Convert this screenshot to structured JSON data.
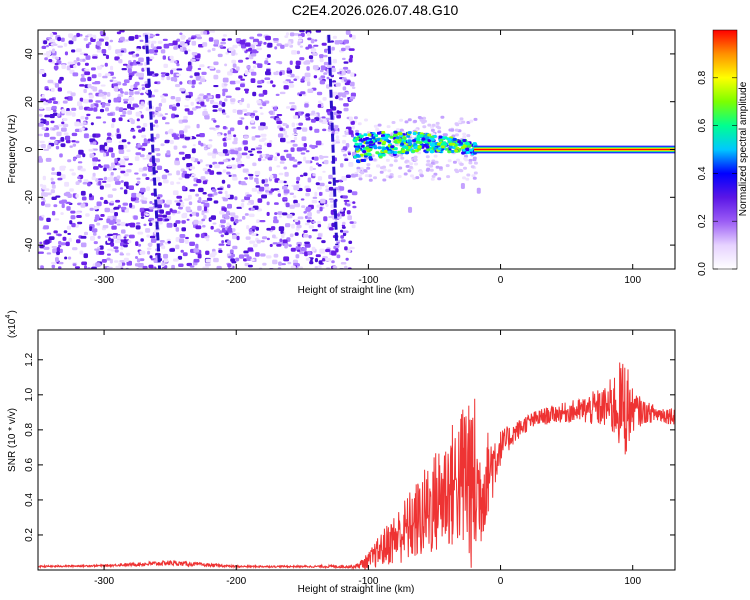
{
  "title": "C2E4.2026.026.07.48.G10",
  "chart_data": [
    {
      "type": "heatmap",
      "xlabel": "Height of straight line (km)",
      "ylabel": "Frequency (Hz)",
      "xlim": [
        -350,
        132
      ],
      "ylim": [
        -50,
        50
      ],
      "xticks": [
        -300,
        -200,
        -100,
        0,
        100
      ],
      "yticks": [
        -40,
        -20,
        0,
        20,
        40
      ],
      "colorbar": {
        "label": "Normalized spectral amplitude",
        "range": [
          0,
          1
        ],
        "ticks": [
          "0.0",
          "0.2",
          "0.4",
          "0.6",
          "0.8"
        ],
        "colors": [
          "#ffffff",
          "#e6d2ff",
          "#9b5cf5",
          "#5a16e6",
          "#0000ff",
          "#00c8ff",
          "#00ff90",
          "#7cff00",
          "#ffff00",
          "#ff9000",
          "#ff0000"
        ]
      },
      "regions": [
        {
          "x": [
            -350,
            -112
          ],
          "description_values": {
            "freq_spread": [
              -50,
              50
            ],
            "amplitude": 0.2
          }
        },
        {
          "x": [
            -112,
            -20
          ],
          "freq_center": 1,
          "freq_halfwidth": 6,
          "amplitude": 0.45
        },
        {
          "x": [
            -20,
            132
          ],
          "freq_center": 0,
          "freq_halfwidth": 1.5,
          "amplitude": 0.95
        }
      ],
      "streaks": [
        {
          "x_start": -268,
          "x_end": -258,
          "y_start": 48,
          "y_end": -50
        },
        {
          "x_start": -130,
          "x_end": -124,
          "y_start": 48,
          "y_end": -40
        }
      ]
    },
    {
      "type": "line",
      "xlabel": "Height of straight line (km)",
      "ylabel": "SNR (10 * v/v)",
      "multiplier": "(x10",
      "multiplier_exp": "4",
      "xlim": [
        -350,
        132
      ],
      "ylim": [
        0,
        1.37
      ],
      "xticks": [
        -300,
        -200,
        -100,
        0,
        100
      ],
      "yticks": [
        0.2,
        0.4,
        0.6,
        0.8,
        1.0,
        1.2
      ],
      "series": [
        {
          "color": "#ee3333",
          "x": [
            -350,
            -300,
            -250,
            -200,
            -150,
            -110,
            -100,
            -90,
            -80,
            -70,
            -60,
            -50,
            -40,
            -30,
            -25,
            -20,
            -15,
            -10,
            -5,
            0,
            10,
            20,
            30,
            40,
            50,
            60,
            70,
            80,
            90,
            95,
            100,
            110,
            120,
            132
          ],
          "y": [
            0.02,
            0.025,
            0.04,
            0.02,
            0.02,
            0.02,
            0.05,
            0.12,
            0.18,
            0.24,
            0.3,
            0.38,
            0.46,
            0.52,
            0.55,
            0.5,
            0.42,
            0.55,
            0.62,
            0.7,
            0.78,
            0.84,
            0.87,
            0.89,
            0.9,
            0.91,
            0.92,
            0.93,
            0.94,
            0.93,
            0.91,
            0.9,
            0.89,
            0.88
          ],
          "amplitude": [
            0.005,
            0.005,
            0.015,
            0.005,
            0.005,
            0.01,
            0.05,
            0.1,
            0.15,
            0.2,
            0.25,
            0.3,
            0.35,
            0.4,
            0.6,
            0.55,
            0.3,
            0.25,
            0.2,
            0.1,
            0.06,
            0.05,
            0.05,
            0.05,
            0.06,
            0.07,
            0.1,
            0.12,
            0.25,
            0.3,
            0.12,
            0.06,
            0.05,
            0.05
          ]
        }
      ]
    }
  ]
}
